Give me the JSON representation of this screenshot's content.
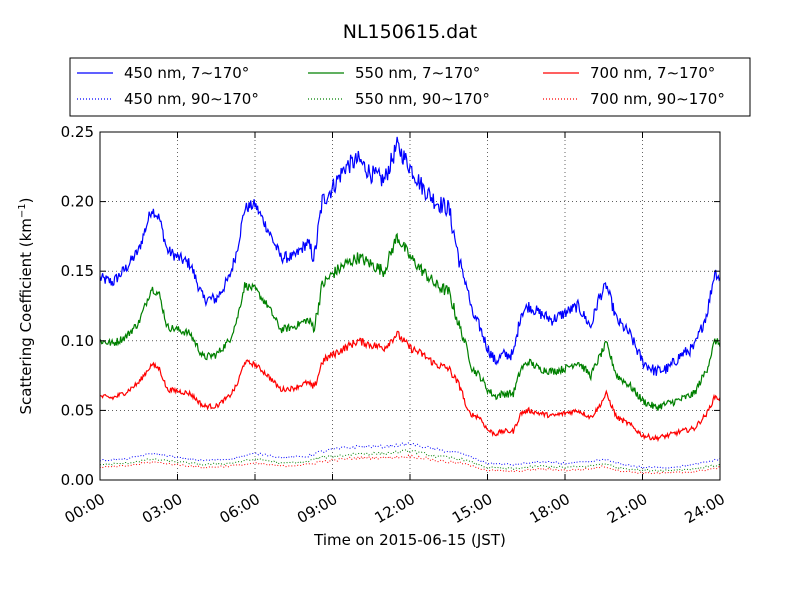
{
  "chart_data": {
    "type": "line",
    "title": "NL150615.dat",
    "xlabel": "Time on 2015-06-15 (JST)",
    "ylabel": "Scattering Coefficient (km",
    "ylabel_sup": "−1",
    "ylabel_close": ")",
    "x_range_hours": [
      0,
      24
    ],
    "ylim": [
      0,
      0.25
    ],
    "grid": true,
    "legend_position": "top",
    "x_ticks": [
      {
        "hour": 0,
        "label": "00:00"
      },
      {
        "hour": 3,
        "label": "03:00"
      },
      {
        "hour": 6,
        "label": "06:00"
      },
      {
        "hour": 9,
        "label": "09:00"
      },
      {
        "hour": 12,
        "label": "12:00"
      },
      {
        "hour": 15,
        "label": "15:00"
      },
      {
        "hour": 18,
        "label": "18:00"
      },
      {
        "hour": 21,
        "label": "21:00"
      },
      {
        "hour": 24,
        "label": "24:00"
      }
    ],
    "y_ticks": [
      {
        "value": 0.0,
        "label": "0.00"
      },
      {
        "value": 0.05,
        "label": "0.05"
      },
      {
        "value": 0.1,
        "label": "0.10"
      },
      {
        "value": 0.15,
        "label": "0.15"
      },
      {
        "value": 0.2,
        "label": "0.20"
      },
      {
        "value": 0.25,
        "label": "0.25"
      }
    ],
    "series": [
      {
        "name": "450 nm, 7∼170°",
        "color": "#0000ff",
        "style": "solid",
        "x": [
          0,
          0.5,
          1,
          1.5,
          2,
          2.3,
          2.6,
          3,
          3.5,
          4,
          4.5,
          5,
          5.3,
          5.6,
          6,
          6.5,
          7,
          7.5,
          8,
          8.3,
          8.6,
          9,
          9.5,
          10,
          10.5,
          11,
          11.5,
          12,
          12.5,
          13,
          13.5,
          14,
          14.2,
          14.4,
          14.7,
          15,
          15.3,
          15.6,
          16,
          16.3,
          16.6,
          17,
          17.5,
          18,
          18.5,
          19,
          19.3,
          19.6,
          20,
          20.5,
          21,
          21.5,
          22,
          22.5,
          23,
          23.5,
          23.8,
          24
        ],
        "y": [
          0.145,
          0.142,
          0.152,
          0.165,
          0.195,
          0.188,
          0.165,
          0.16,
          0.155,
          0.13,
          0.13,
          0.145,
          0.165,
          0.195,
          0.198,
          0.18,
          0.16,
          0.16,
          0.17,
          0.16,
          0.2,
          0.21,
          0.225,
          0.23,
          0.22,
          0.215,
          0.24,
          0.225,
          0.21,
          0.2,
          0.195,
          0.15,
          0.14,
          0.12,
          0.11,
          0.095,
          0.085,
          0.09,
          0.09,
          0.12,
          0.125,
          0.12,
          0.115,
          0.12,
          0.125,
          0.11,
          0.13,
          0.14,
          0.115,
          0.105,
          0.085,
          0.078,
          0.08,
          0.09,
          0.095,
          0.12,
          0.15,
          0.145
        ]
      },
      {
        "name": "550 nm, 7∼170°",
        "color": "#008000",
        "style": "solid",
        "x": [
          0,
          0.5,
          1,
          1.5,
          2,
          2.3,
          2.6,
          3,
          3.5,
          4,
          4.5,
          5,
          5.3,
          5.6,
          6,
          6.5,
          7,
          7.5,
          8,
          8.3,
          8.6,
          9,
          9.5,
          10,
          10.5,
          11,
          11.5,
          12,
          12.5,
          13,
          13.5,
          14,
          14.2,
          14.4,
          14.7,
          15,
          15.3,
          15.6,
          16,
          16.3,
          16.6,
          17,
          17.5,
          18,
          18.5,
          19,
          19.3,
          19.6,
          20,
          20.5,
          21,
          21.5,
          22,
          22.5,
          23,
          23.5,
          23.8,
          24
        ],
        "y": [
          0.1,
          0.098,
          0.103,
          0.113,
          0.138,
          0.133,
          0.11,
          0.108,
          0.105,
          0.088,
          0.09,
          0.1,
          0.115,
          0.14,
          0.137,
          0.125,
          0.108,
          0.11,
          0.115,
          0.11,
          0.14,
          0.148,
          0.155,
          0.16,
          0.155,
          0.15,
          0.175,
          0.16,
          0.15,
          0.14,
          0.135,
          0.105,
          0.095,
          0.08,
          0.075,
          0.065,
          0.06,
          0.062,
          0.062,
          0.08,
          0.085,
          0.08,
          0.078,
          0.08,
          0.085,
          0.075,
          0.087,
          0.098,
          0.075,
          0.068,
          0.057,
          0.052,
          0.055,
          0.058,
          0.062,
          0.08,
          0.1,
          0.098
        ]
      },
      {
        "name": "700 nm, 7∼170°",
        "color": "#ff0000",
        "style": "solid",
        "x": [
          0,
          0.5,
          1,
          1.5,
          2,
          2.3,
          2.6,
          3,
          3.5,
          4,
          4.5,
          5,
          5.3,
          5.6,
          6,
          6.5,
          7,
          7.5,
          8,
          8.3,
          8.6,
          9,
          9.5,
          10,
          10.5,
          11,
          11.5,
          12,
          12.5,
          13,
          13.5,
          14,
          14.2,
          14.4,
          14.7,
          15,
          15.3,
          15.6,
          16,
          16.3,
          16.6,
          17,
          17.5,
          18,
          18.5,
          19,
          19.3,
          19.6,
          20,
          20.5,
          21,
          21.5,
          22,
          22.5,
          23,
          23.5,
          23.8,
          24
        ],
        "y": [
          0.06,
          0.059,
          0.063,
          0.07,
          0.083,
          0.08,
          0.065,
          0.064,
          0.062,
          0.053,
          0.053,
          0.06,
          0.068,
          0.085,
          0.083,
          0.075,
          0.065,
          0.066,
          0.07,
          0.066,
          0.085,
          0.09,
          0.095,
          0.1,
          0.097,
          0.095,
          0.105,
          0.095,
          0.09,
          0.083,
          0.08,
          0.065,
          0.05,
          0.047,
          0.045,
          0.036,
          0.033,
          0.035,
          0.035,
          0.048,
          0.05,
          0.048,
          0.046,
          0.048,
          0.05,
          0.045,
          0.052,
          0.062,
          0.045,
          0.04,
          0.032,
          0.03,
          0.032,
          0.035,
          0.037,
          0.048,
          0.06,
          0.058
        ]
      },
      {
        "name": "450 nm, 90∼170°",
        "color": "#0000ff",
        "style": "dotted",
        "x": [
          0,
          1,
          2,
          2.5,
          3,
          4,
          5,
          6,
          6.5,
          7,
          8,
          8.5,
          9,
          10,
          11,
          12,
          12.5,
          13,
          14,
          15,
          16,
          17,
          18,
          19,
          19.5,
          20,
          21,
          22,
          23,
          24
        ],
        "y": [
          0.014,
          0.015,
          0.019,
          0.018,
          0.016,
          0.014,
          0.015,
          0.019,
          0.018,
          0.016,
          0.017,
          0.02,
          0.022,
          0.024,
          0.024,
          0.026,
          0.024,
          0.022,
          0.019,
          0.012,
          0.011,
          0.013,
          0.012,
          0.013,
          0.015,
          0.012,
          0.009,
          0.009,
          0.011,
          0.015
        ]
      },
      {
        "name": "550 nm, 90∼170°",
        "color": "#008000",
        "style": "dotted",
        "x": [
          0,
          1,
          2,
          2.5,
          3,
          4,
          5,
          6,
          6.5,
          7,
          8,
          8.5,
          9,
          10,
          11,
          12,
          12.5,
          13,
          14,
          15,
          16,
          17,
          18,
          19,
          19.5,
          20,
          21,
          22,
          23,
          24
        ],
        "y": [
          0.011,
          0.012,
          0.015,
          0.014,
          0.013,
          0.011,
          0.012,
          0.015,
          0.014,
          0.012,
          0.013,
          0.016,
          0.017,
          0.019,
          0.019,
          0.021,
          0.019,
          0.017,
          0.015,
          0.009,
          0.008,
          0.01,
          0.009,
          0.01,
          0.012,
          0.009,
          0.007,
          0.007,
          0.008,
          0.011
        ]
      },
      {
        "name": "700 nm, 90∼170°",
        "color": "#ff0000",
        "style": "dotted",
        "x": [
          0,
          1,
          2,
          2.5,
          3,
          4,
          5,
          6,
          6.5,
          7,
          8,
          8.5,
          9,
          10,
          11,
          12,
          12.5,
          13,
          14,
          15,
          16,
          17,
          18,
          19,
          19.5,
          20,
          21,
          22,
          23,
          24
        ],
        "y": [
          0.009,
          0.01,
          0.013,
          0.012,
          0.011,
          0.009,
          0.01,
          0.012,
          0.011,
          0.01,
          0.011,
          0.013,
          0.014,
          0.016,
          0.016,
          0.017,
          0.016,
          0.014,
          0.012,
          0.007,
          0.006,
          0.008,
          0.007,
          0.008,
          0.01,
          0.007,
          0.005,
          0.005,
          0.006,
          0.009
        ]
      }
    ]
  }
}
